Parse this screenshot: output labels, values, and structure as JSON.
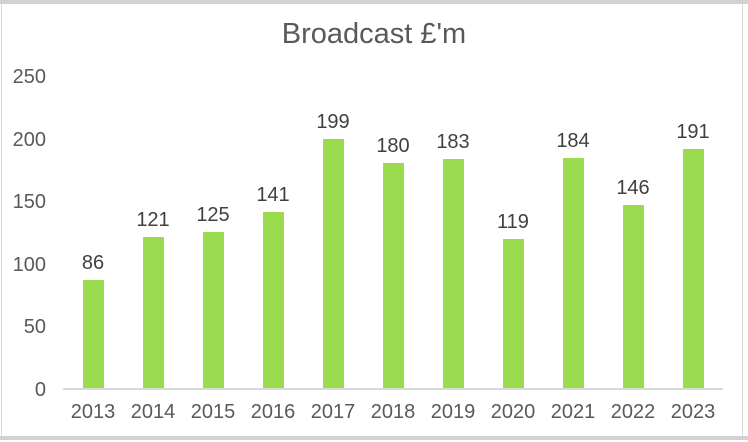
{
  "chart_data": {
    "type": "bar",
    "title": "Broadcast £'m",
    "categories": [
      "2013",
      "2014",
      "2015",
      "2016",
      "2017",
      "2018",
      "2019",
      "2020",
      "2021",
      "2022",
      "2023"
    ],
    "values": [
      86,
      121,
      125,
      141,
      199,
      180,
      183,
      119,
      184,
      146,
      191
    ],
    "xlabel": "",
    "ylabel": "",
    "ylim": [
      0,
      250
    ],
    "yticks": [
      0,
      50,
      100,
      150,
      200,
      250
    ],
    "grid": false,
    "legend": false,
    "data_labels": true,
    "bar_color": "#9bdb4f",
    "data_label_color": "#404040",
    "axis_text_color": "#595959",
    "axis_line_color": "#d9d9d9",
    "title_color": "#595959"
  }
}
